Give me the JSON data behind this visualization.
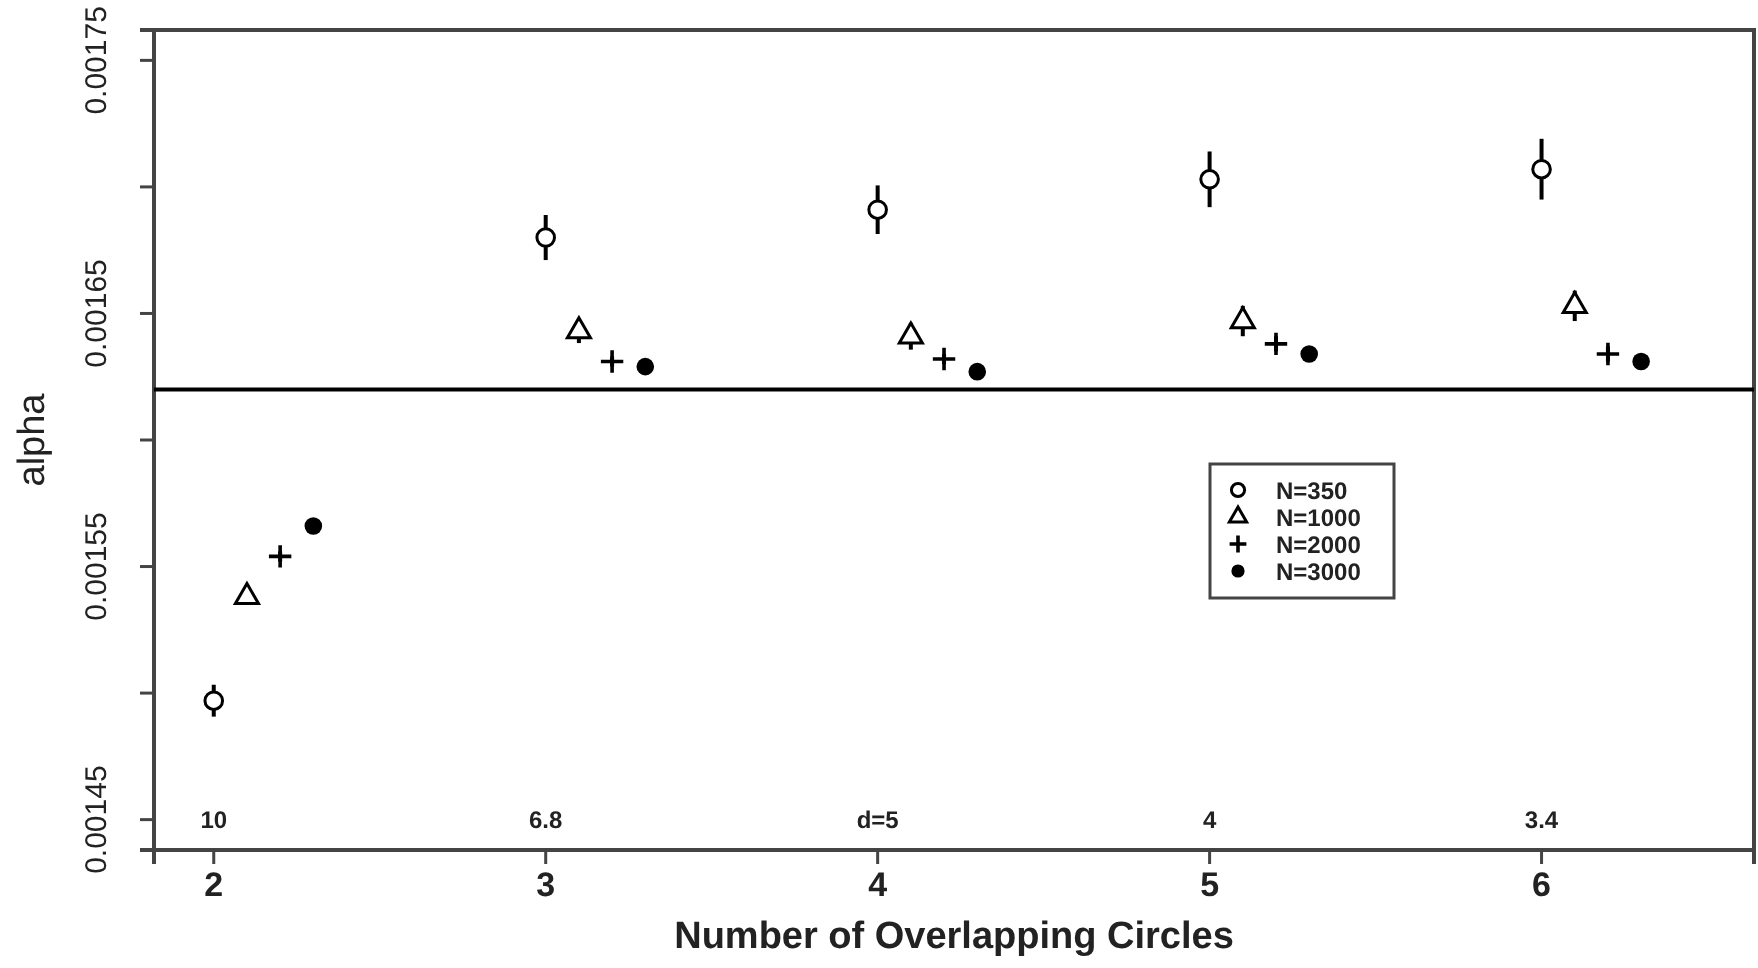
{
  "chart_data": {
    "type": "scatter",
    "xlabel": "Number of Overlapping Circles",
    "ylabel": "alpha",
    "xlim": [
      1.82,
      6.64
    ],
    "xticks": [
      2,
      3,
      4,
      5,
      6
    ],
    "ylim": [
      0.001438,
      0.001762
    ],
    "yticks": [
      0.00145,
      {
        "value": 0.0015,
        "label": null
      },
      0.00155,
      {
        "value": 0.0016,
        "label": null
      },
      0.00165,
      {
        "value": 0.0017,
        "label": null
      },
      0.00175
    ],
    "legend": "right",
    "grid": false,
    "series": [
      {
        "name": "N=350",
        "color": "#000000",
        "marker": "circle",
        "x": [
          2,
          3,
          4,
          5,
          6
        ],
        "values": [
          0.001497,
          0.00168,
          0.001691,
          0.001703,
          0.001707
        ],
        "errors": [
          6.3e-06,
          8.9e-06,
          9.6e-06,
          1.1e-05,
          1.2e-05
        ]
      },
      {
        "name": "N=1000",
        "color": "#000000",
        "marker": "triangle",
        "x": [
          2.1,
          3.1,
          4.1,
          5.1,
          6.1
        ],
        "values": [
          0.001538,
          0.001643,
          0.001641,
          0.001647,
          0.001653
        ],
        "errors": [
          2e-06,
          4.7e-06,
          5.3e-06,
          6e-06,
          6e-06
        ]
      },
      {
        "name": "N=2000",
        "color": "#000000",
        "marker": "cross",
        "x": [
          2.2,
          3.2,
          4.2,
          5.2,
          6.2
        ],
        "values": [
          0.001554,
          0.001631,
          0.001632,
          0.001638,
          0.001634
        ],
        "errors": [
          2e-06,
          2e-06,
          2e-06,
          3e-06,
          3e-06
        ]
      },
      {
        "name": "N=3000",
        "color": "#000000",
        "marker": "circle-filled",
        "x": [
          2.3,
          3.3,
          4.3,
          5.3,
          6.3
        ],
        "values": [
          0.001566,
          0.001629,
          0.001627,
          0.001634,
          0.001631
        ],
        "errors": [
          1.5e-06,
          1.5e-06,
          1.5e-06,
          2e-06,
          2e-06
        ]
      }
    ],
    "ref_lines": [
      {
        "axis": "y",
        "value": 0.00162,
        "color": "#000000"
      }
    ],
    "annotations": [
      "10",
      "6.8",
      "d=5",
      "4",
      "3.4"
    ]
  }
}
